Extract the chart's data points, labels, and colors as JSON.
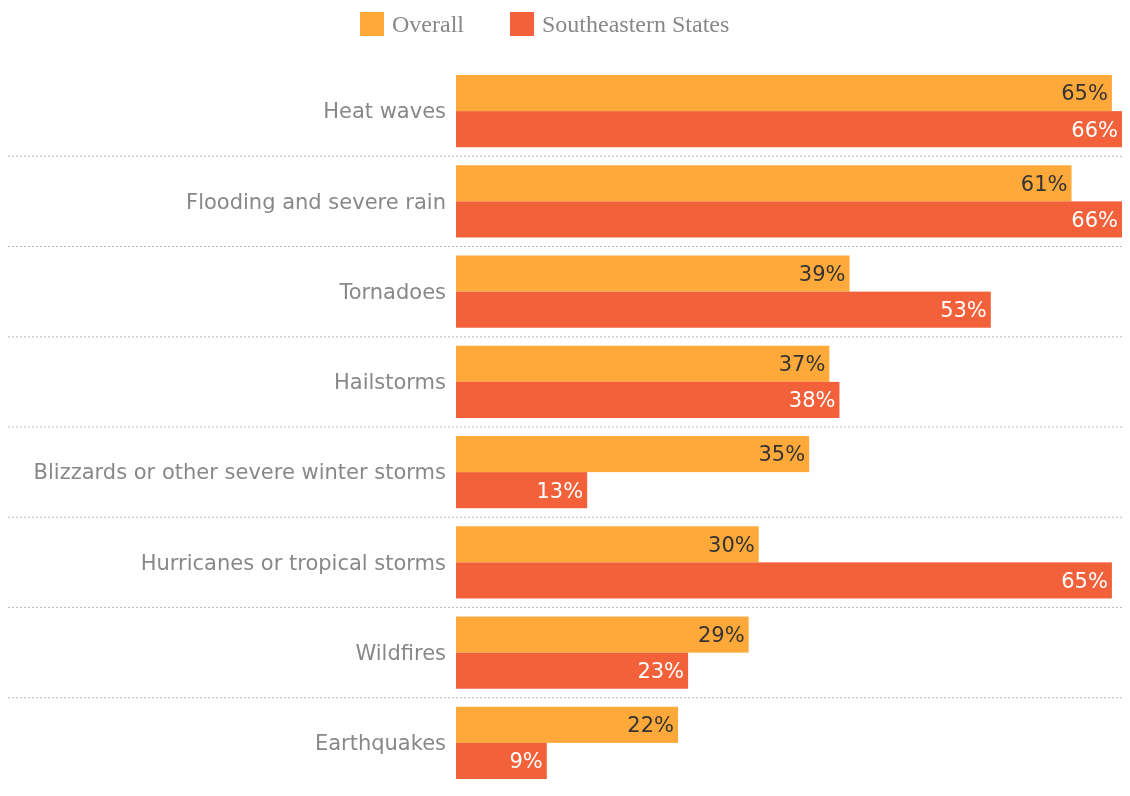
{
  "chart_data": {
    "type": "bar",
    "orientation": "horizontal",
    "categories": [
      "Heat waves",
      "Flooding and severe rain",
      "Tornadoes",
      "Hailstorms",
      "Blizzards or other severe winter storms",
      "Hurricanes or tropical storms",
      "Wildfires",
      "Earthquakes"
    ],
    "series": [
      {
        "name": "Overall",
        "color": "#ffa93a",
        "values": [
          65,
          61,
          39,
          37,
          35,
          30,
          29,
          22
        ],
        "value_labels": [
          "65%",
          "61%",
          "39%",
          "37%",
          "35%",
          "30%",
          "29%",
          "22%"
        ]
      },
      {
        "name": "Southeastern States",
        "color": "#f26139",
        "values": [
          66,
          66,
          53,
          38,
          13,
          65,
          23,
          9
        ],
        "value_labels": [
          "66%",
          "66%",
          "53%",
          "38%",
          "13%",
          "65%",
          "23%",
          "9%"
        ]
      }
    ],
    "legend": "top",
    "grid": "y"
  }
}
